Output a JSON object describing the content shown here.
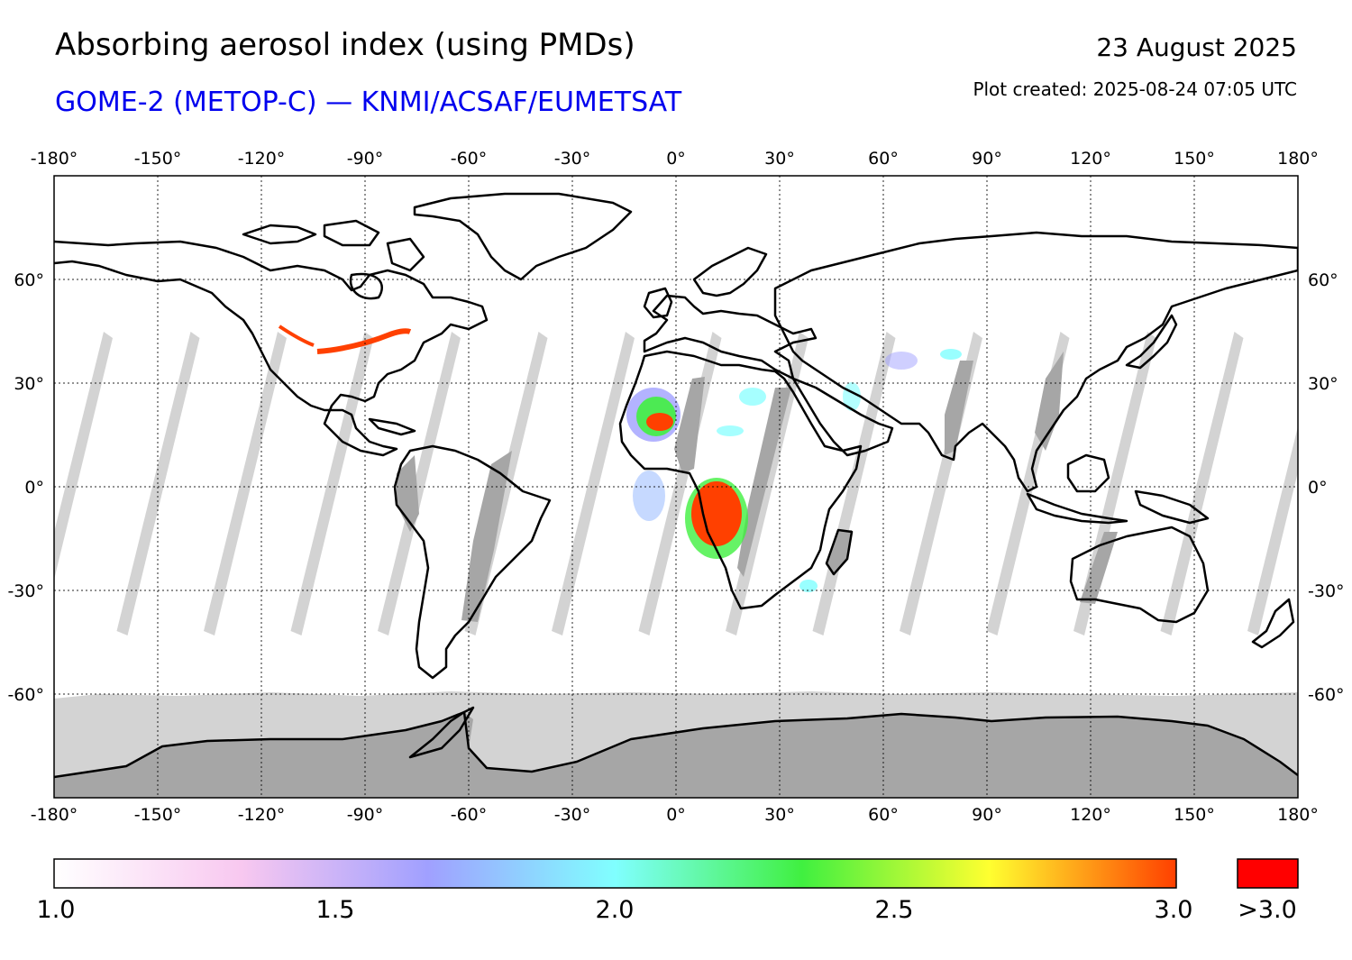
{
  "header": {
    "title": "Absorbing aerosol index (using PMDs)",
    "subtitle": "GOME-2 (METOP-C) — KNMI/ACSAF/EUMETSAT",
    "date": "23 August 2025",
    "created": "Plot created: 2025-08-24 07:05 UTC"
  },
  "axes": {
    "lon_range": [
      -180,
      180
    ],
    "lat_range": [
      -90,
      90
    ],
    "lon_ticks": [
      -180,
      -150,
      -120,
      -90,
      -60,
      -30,
      0,
      30,
      60,
      90,
      120,
      150,
      180
    ],
    "lon_labels": [
      "-180°",
      "-150°",
      "-120°",
      "-90°",
      "-60°",
      "-30°",
      "0°",
      "30°",
      "60°",
      "90°",
      "120°",
      "150°",
      "180°"
    ],
    "lat_ticks": [
      60,
      30,
      0,
      -30,
      -60
    ],
    "lat_labels": [
      "60°",
      "30°",
      "0°",
      "-30°",
      "-60°"
    ],
    "grid": true
  },
  "colorbar": {
    "range": [
      1.0,
      3.0
    ],
    "labels": [
      "1.0",
      "1.5",
      "2.0",
      "2.5",
      "3.0"
    ],
    "over_label": ">3.0",
    "over_color": "#ff0000",
    "stops": [
      "#ffffff",
      "#f8c8f0",
      "#a0a0ff",
      "#80ffff",
      "#40f040",
      "#ffff30",
      "#ff4000"
    ]
  },
  "colors": {
    "no_data_light": "#d3d3d3",
    "no_data_dark": "#a6a6a6",
    "coastline": "#000000"
  }
}
